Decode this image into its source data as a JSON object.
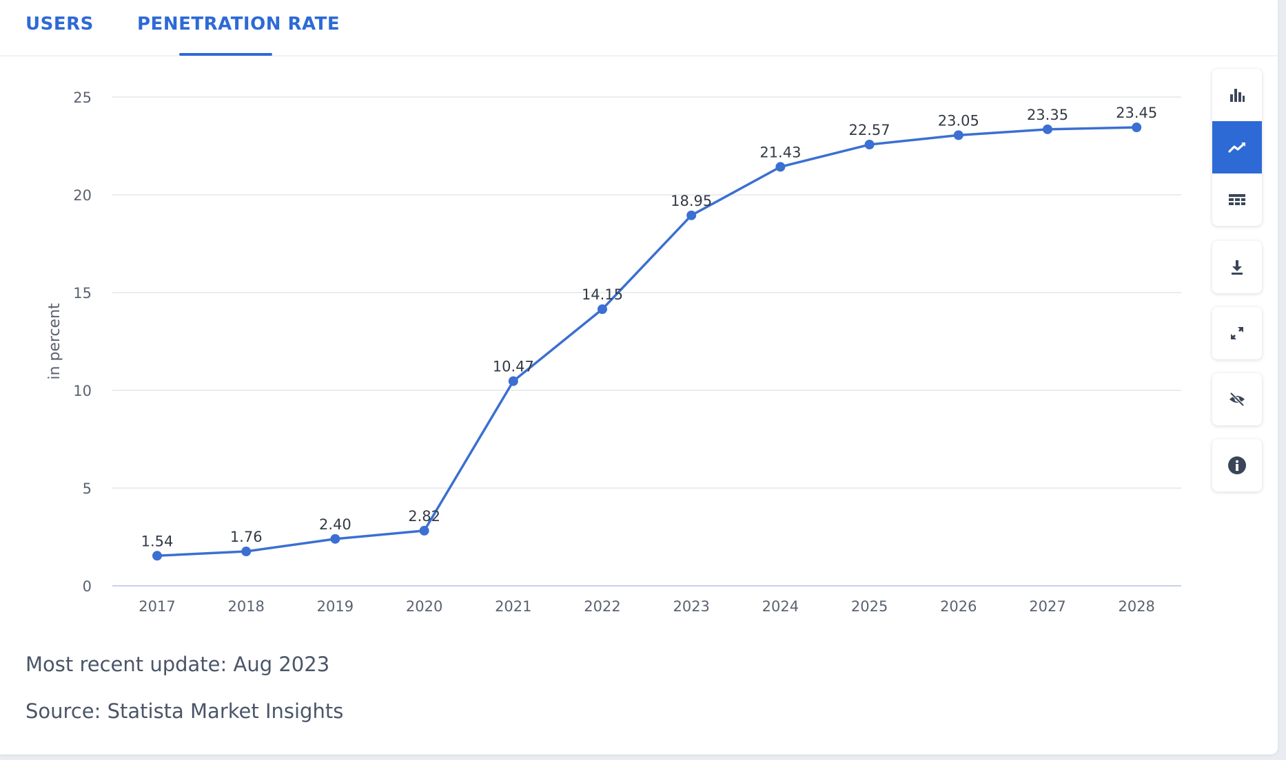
{
  "tabs": [
    {
      "label": "USERS"
    },
    {
      "label": "PENETRATION RATE",
      "active": true
    }
  ],
  "toolbar": {
    "icons": [
      "bar-chart-icon",
      "line-chart-icon",
      "table-icon",
      "download-icon",
      "expand-icon",
      "hide-icon",
      "info-icon"
    ],
    "active": "line-chart-icon"
  },
  "footer": {
    "update": "Most recent update: Aug 2023",
    "source": "Source: Statista Market Insights"
  },
  "colors": {
    "accent": "#2d6ad6",
    "line": "#3b6fd1",
    "grid": "#e3e6ea",
    "axis_text": "#5a6270",
    "label_text": "#333a45"
  },
  "chart_data": {
    "type": "line",
    "x": [
      "2017",
      "2018",
      "2019",
      "2020",
      "2021",
      "2022",
      "2023",
      "2024",
      "2025",
      "2026",
      "2027",
      "2028"
    ],
    "values": [
      1.54,
      1.76,
      2.4,
      2.82,
      10.47,
      14.15,
      18.95,
      21.43,
      22.57,
      23.05,
      23.35,
      23.45
    ],
    "value_labels": [
      "1.54",
      "1.76",
      "2.40",
      "2.82",
      "10.47",
      "14.15",
      "18.95",
      "21.43",
      "22.57",
      "23.05",
      "23.35",
      "23.45"
    ],
    "ylabel": "in percent",
    "ylim": [
      0,
      25
    ],
    "yticks": [
      "0",
      "5",
      "10",
      "15",
      "20",
      "25"
    ],
    "grid": true
  }
}
